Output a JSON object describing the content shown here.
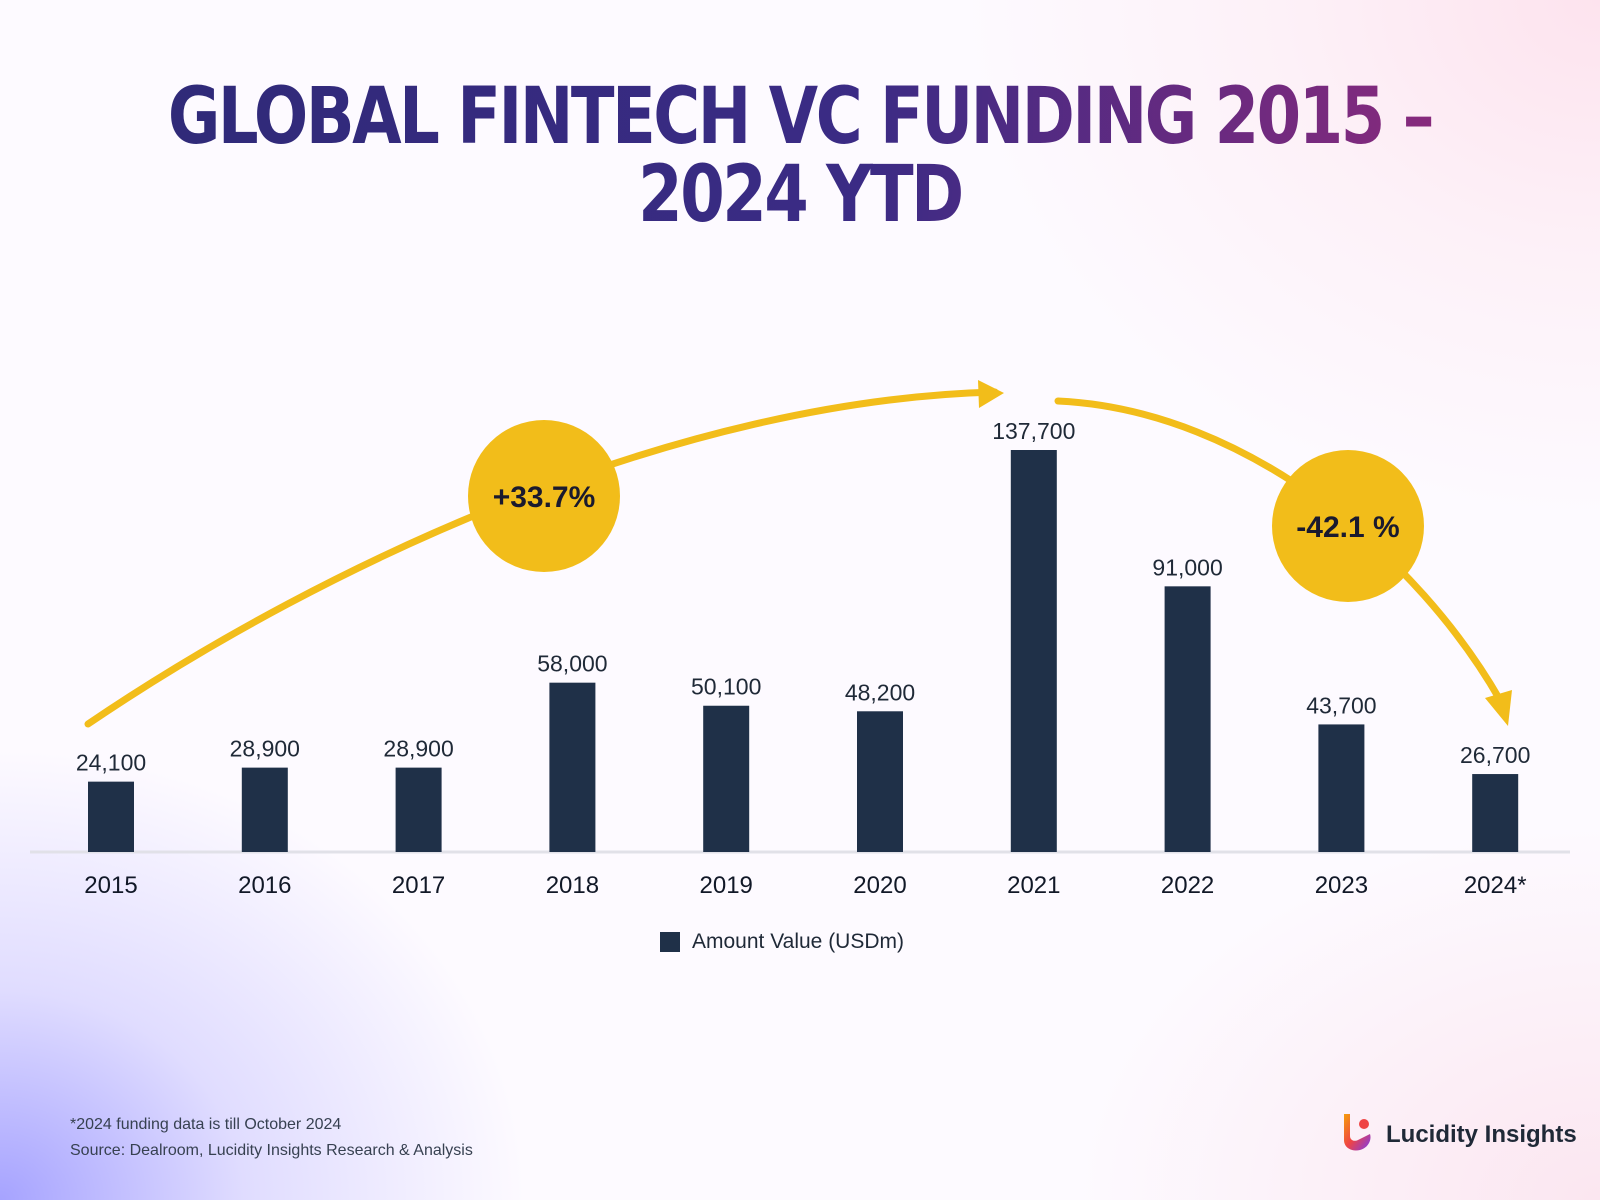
{
  "title": "GLOBAL FINTECH VC FUNDING 2015 – 2024 YTD",
  "chart_data": {
    "type": "bar",
    "categories": [
      "2015",
      "2016",
      "2017",
      "2018",
      "2019",
      "2020",
      "2021",
      "2022",
      "2023",
      "2024*"
    ],
    "series": [
      {
        "name": "Amount Value (USDm)",
        "values": [
          24100,
          28900,
          28900,
          58000,
          50100,
          48200,
          137700,
          91000,
          43700,
          26700
        ],
        "labels": [
          "24,100",
          "28,900",
          "28,900",
          "58,000",
          "50,100",
          "48,200",
          "137,700",
          "91,000",
          "43,700",
          "26,700"
        ]
      }
    ],
    "ylim": [
      0,
      137700
    ],
    "grid": false,
    "legend_position": "bottom-center",
    "bar_color": "#1f3048",
    "annotations": [
      {
        "text": "+33.7%",
        "from_category": "2015",
        "to_category": "2021",
        "direction": "up"
      },
      {
        "text": "-42.1 %",
        "from_category": "2021",
        "to_category": "2024*",
        "direction": "down"
      }
    ],
    "annotation_color": "#f2bd1a"
  },
  "footnote": "*2024 funding data is till October 2024",
  "source": "Source: Dealroom, Lucidity Insights Research & Analysis",
  "brand": {
    "name": "Lucidity Insights",
    "logo_icon": "lucidity-logo-icon"
  }
}
